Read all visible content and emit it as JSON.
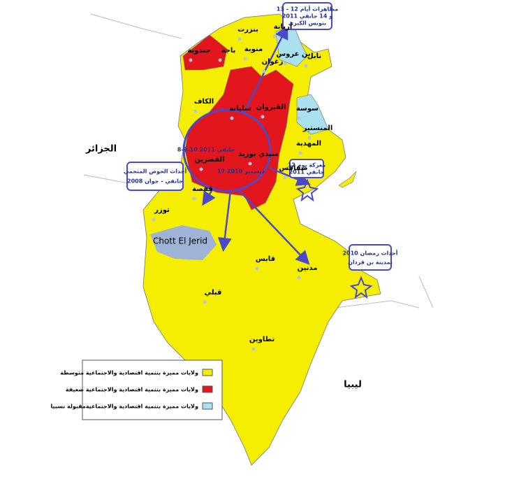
{
  "countries": {
    "algeria": "الجزائر",
    "libya": "ليبيا"
  },
  "lake": "Chott El Jerid",
  "governorates": [
    "بنزرت",
    "منوبة",
    "باجة",
    "جندوبة",
    "أريانة",
    "بن عروس",
    "نابل",
    "زغوان",
    "الكاف",
    "سليانة",
    "القيروان",
    "سوسة",
    "المنستير",
    "المهدية",
    "القصرين",
    "سيدي بوزيد",
    "صفاقس",
    "قفصة",
    "توزر",
    "قبلي",
    "قابس",
    "مدنين",
    "تطاوين"
  ],
  "callouts": {
    "tunis": [
      "مظاهرات أيام 12 - 13",
      "و 14 جانفي 2011",
      "بتونس الكبرى"
    ],
    "sfax": [
      "معركة يوم 12",
      "جانفي 2011"
    ],
    "gafsa": [
      "أحداث الحوض المنجمي",
      "جانفي - جوان 2008"
    ],
    "bengardane": [
      "أحداث رمضان 2010",
      "بمدينة بن قردان"
    ]
  },
  "circle_dates": [
    "8-9-10 جانفي 2011",
    "17 ديسمبر 2010"
  ],
  "legend": [
    "ولايات مميزة بتنمية اقتصادية والاجتماعية متوسطة",
    "ولايات مميزة بتنمية اقتصادية والاجتماعية ضعيفة",
    "ولايات مميزة بتنمية اقتصادية والاجتماعيةمقبولة نسبيا"
  ]
}
